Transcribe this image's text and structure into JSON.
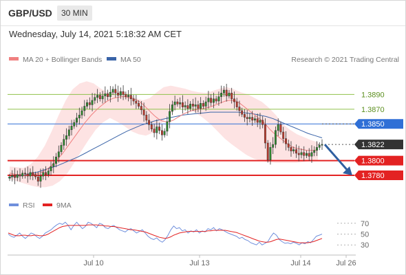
{
  "header": {
    "symbol": "GBP/USD",
    "timeframe": "30 MIN"
  },
  "timestamp": "Wednesday, July 14, 2021 5:18:32 AM CET",
  "legend": {
    "ma20": "MA 20 + Bollinger Bands",
    "ma50": "MA 50",
    "credit": "Research © 2021 Trading Central"
  },
  "rsi_legend": {
    "rsi": "RSI",
    "ma9": "9MA"
  },
  "colors": {
    "up": "#2e8b2e",
    "down": "#c0392b",
    "ma20": "#f08080",
    "ma50": "#3a64a8",
    "band": "#fde3e3",
    "resistance": "#8fc14a",
    "pivot": "#2f6fd6",
    "support": "#e32222",
    "price": "#333333"
  },
  "levels": [
    {
      "label": "1.3890",
      "value": 1.389,
      "kind": "resistance"
    },
    {
      "label": "1.3870",
      "value": 1.387,
      "kind": "resistance"
    },
    {
      "label": "1.3850",
      "value": 1.385,
      "kind": "pivot"
    },
    {
      "label": "1.3822",
      "value": 1.3822,
      "kind": "price"
    },
    {
      "label": "1.3800",
      "value": 1.38,
      "kind": "support"
    },
    {
      "label": "1.3780",
      "value": 1.378,
      "kind": "support"
    }
  ],
  "chart_data": [
    {
      "type": "candlestick",
      "x_ticks": [
        "Jul 10",
        "Jul 13",
        "Jul 14",
        "Jul 26"
      ],
      "ylim": [
        1.3752,
        1.3925
      ],
      "close_path": [
        1.3778,
        1.378,
        1.3777,
        1.3781,
        1.3779,
        1.3783,
        1.3782,
        1.3779,
        1.3784,
        1.3781,
        1.3778,
        1.3772,
        1.3779,
        1.3784,
        1.3781,
        1.3786,
        1.3792,
        1.3796,
        1.3805,
        1.3812,
        1.3821,
        1.3829,
        1.3834,
        1.3842,
        1.3847,
        1.3852,
        1.3858,
        1.3862,
        1.3868,
        1.3874,
        1.3879,
        1.3876,
        1.3882,
        1.3886,
        1.3889,
        1.3884,
        1.3888,
        1.3891,
        1.3887,
        1.3893,
        1.3897,
        1.3892,
        1.3889,
        1.3894,
        1.389,
        1.3887,
        1.3889,
        1.3884,
        1.3881,
        1.3878,
        1.3874,
        1.3869,
        1.3862,
        1.3855,
        1.3849,
        1.3843,
        1.3838,
        1.3846,
        1.3841,
        1.3835,
        1.384,
        1.3853,
        1.3867,
        1.3876,
        1.388,
        1.3877,
        1.3879,
        1.3873,
        1.3875,
        1.3871,
        1.3877,
        1.3874,
        1.3876,
        1.3871,
        1.3878,
        1.3874,
        1.388,
        1.3885,
        1.3879,
        1.3884,
        1.3881,
        1.3887,
        1.3892,
        1.3896,
        1.3888,
        1.3892,
        1.3884,
        1.388,
        1.3873,
        1.3868,
        1.3863,
        1.3859,
        1.3857,
        1.3859,
        1.3855,
        1.3857,
        1.3852,
        1.3855,
        1.3849,
        1.3824,
        1.3801,
        1.3818,
        1.3822,
        1.3841,
        1.3849,
        1.3839,
        1.383,
        1.3823,
        1.3818,
        1.3813,
        1.3815,
        1.381,
        1.3808,
        1.3811,
        1.3807,
        1.381,
        1.3806,
        1.3811,
        1.3814,
        1.3818,
        1.3821,
        1.3822
      ],
      "ma20_path": [
        1.3783,
        1.3782,
        1.3781,
        1.3781,
        1.378,
        1.3781,
        1.3781,
        1.3782,
        1.3783,
        1.3785,
        1.3788,
        1.3792,
        1.3797,
        1.3803,
        1.3808,
        1.3815,
        1.3822,
        1.3829,
        1.3836,
        1.3843,
        1.385,
        1.3856,
        1.3862,
        1.3867,
        1.3872,
        1.3876,
        1.388,
        1.3883,
        1.3885,
        1.3886,
        1.3887,
        1.3887,
        1.3886,
        1.3885,
        1.3883,
        1.388,
        1.3876,
        1.3871,
        1.3866,
        1.3861,
        1.3857,
        1.3854,
        1.3853,
        1.3853,
        1.3855,
        1.3858,
        1.3861,
        1.3864,
        1.3866,
        1.3868,
        1.3869,
        1.387,
        1.3871,
        1.3872,
        1.3873,
        1.3875,
        1.3877,
        1.3879,
        1.3881,
        1.3882,
        1.3882,
        1.3881,
        1.3878,
        1.3874,
        1.387,
        1.3866,
        1.3862,
        1.3858,
        1.3854,
        1.3849,
        1.3843,
        1.3838,
        1.3834,
        1.383,
        1.3826,
        1.3822,
        1.3819,
        1.3817,
        1.3816,
        1.3815,
        1.3814,
        1.3814,
        1.3814,
        1.3815
      ],
      "ma50_path": [
        1.3777,
        1.3779,
        1.378,
        1.3782,
        1.3784,
        1.3787,
        1.379,
        1.3793,
        1.3797,
        1.3801,
        1.3805,
        1.381,
        1.3815,
        1.382,
        1.3825,
        1.383,
        1.3835,
        1.384,
        1.3844,
        1.3848,
        1.3851,
        1.3854,
        1.3856,
        1.3858,
        1.386,
        1.3862,
        1.3863,
        1.3864,
        1.3865,
        1.3866,
        1.3866,
        1.3866,
        1.3866,
        1.3866,
        1.3865,
        1.3864,
        1.3862,
        1.386,
        1.3857,
        1.3853,
        1.3849,
        1.3845,
        1.3841,
        1.3837,
        1.3834,
        1.3831
      ],
      "band_upper_path": [
        1.3792,
        1.3791,
        1.379,
        1.3795,
        1.3805,
        1.382,
        1.384,
        1.3862,
        1.3882,
        1.3897,
        1.3905,
        1.3908,
        1.3905,
        1.3898,
        1.3893,
        1.3895,
        1.3895,
        1.389,
        1.3885,
        1.3882,
        1.3885,
        1.3893,
        1.39,
        1.3902,
        1.39,
        1.3898,
        1.3895,
        1.3893,
        1.3892,
        1.3895,
        1.3898,
        1.39,
        1.3897,
        1.3893,
        1.389,
        1.3885,
        1.388,
        1.3872,
        1.3862,
        1.385,
        1.3842,
        1.3836,
        1.3832,
        1.3828,
        1.3825
      ],
      "band_lower_path": [
        1.3775,
        1.3772,
        1.3769,
        1.3766,
        1.3764,
        1.3764,
        1.3766,
        1.3772,
        1.3782,
        1.3797,
        1.3813,
        1.3828,
        1.3842,
        1.3852,
        1.3858,
        1.3853,
        1.3847,
        1.384,
        1.3836,
        1.3834,
        1.3838,
        1.3849,
        1.386,
        1.3869,
        1.3872,
        1.387,
        1.3865,
        1.3858,
        1.385,
        1.384,
        1.383,
        1.3822,
        1.3815,
        1.3808,
        1.3803,
        1.38,
        1.3798,
        1.3797,
        1.3797,
        1.3797,
        1.3797,
        1.3798,
        1.38,
        1.3801
      ],
      "forecast": {
        "from": 1.3822,
        "to": 1.378
      }
    },
    {
      "type": "line",
      "title": "RSI",
      "y_ticks": [
        70,
        50,
        30
      ],
      "ylim": [
        15,
        85
      ],
      "series": [
        {
          "name": "RSI",
          "color": "#6f8fdc",
          "values": [
            50,
            46,
            44,
            48,
            52,
            46,
            42,
            47,
            52,
            50,
            45,
            42,
            46,
            52,
            55,
            58,
            63,
            67,
            70,
            68,
            72,
            66,
            58,
            66,
            72,
            66,
            60,
            64,
            72,
            70,
            66,
            62,
            70,
            68,
            62,
            60,
            64,
            66,
            62,
            58,
            56,
            54,
            58,
            60,
            56,
            52,
            55,
            58,
            52,
            46,
            42,
            40,
            43,
            38,
            35,
            40,
            48,
            58,
            65,
            60,
            62,
            56,
            58,
            52,
            56,
            54,
            58,
            52,
            56,
            54,
            60,
            58,
            62,
            56,
            60,
            58,
            55,
            52,
            50,
            48,
            46,
            42,
            44,
            40,
            38,
            34,
            32,
            30,
            35,
            30,
            33,
            36,
            45,
            52,
            48,
            40,
            36,
            33,
            34,
            32,
            35,
            33,
            30,
            34,
            32,
            36,
            34,
            40,
            46,
            48,
            50
          ]
        },
        {
          "name": "9MA",
          "color": "#e32222",
          "values": [
            52,
            50,
            48,
            47,
            47,
            48,
            48,
            47,
            47,
            48,
            48,
            47,
            47,
            48,
            50,
            53,
            56,
            59,
            62,
            64,
            65,
            66,
            66,
            66,
            66,
            66,
            66,
            66,
            67,
            67,
            67,
            67,
            66,
            66,
            65,
            65,
            64,
            64,
            63,
            62,
            61,
            60,
            59,
            58,
            58,
            57,
            56,
            55,
            54,
            52,
            50,
            48,
            46,
            44,
            43,
            42,
            43,
            45,
            48,
            50,
            52,
            53,
            54,
            55,
            55,
            55,
            55,
            55,
            55,
            55,
            56,
            56,
            57,
            57,
            57,
            57,
            57,
            56,
            55,
            54,
            53,
            51,
            49,
            47,
            45,
            43,
            41,
            39,
            37,
            36,
            35,
            35,
            36,
            38,
            40,
            41,
            40,
            39,
            38,
            37,
            36,
            35,
            34,
            34,
            34,
            34,
            35,
            36,
            38,
            40,
            42
          ]
        }
      ]
    }
  ]
}
